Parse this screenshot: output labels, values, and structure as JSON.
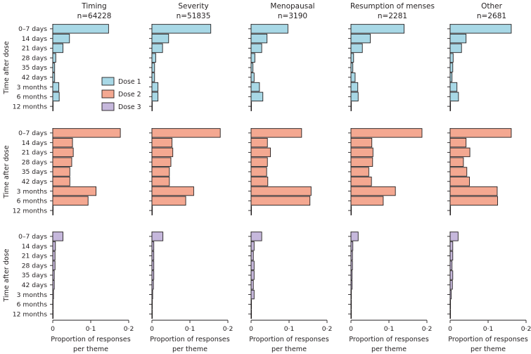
{
  "chart_data": {
    "type": "bar",
    "orientation": "horizontal",
    "y_axis_title": "Time after dose",
    "x_axis_title": [
      "Proportion of responses",
      "per theme"
    ],
    "xlim": [
      0,
      0.2
    ],
    "x_ticks": [
      0,
      0.1,
      0.2
    ],
    "x_tick_labels": [
      "0",
      "0·1",
      "0·2"
    ],
    "categories": [
      "0–7 days",
      "14 days",
      "21 days",
      "28 days",
      "35 days",
      "42 days",
      "3 months",
      "6 months",
      "12 months"
    ],
    "legend": [
      {
        "name": "Dose 1",
        "color": "#a8d8e6"
      },
      {
        "name": "Dose 2",
        "color": "#f4a891"
      },
      {
        "name": "Dose 3",
        "color": "#c6b8dc"
      }
    ],
    "themes": [
      {
        "title": "Timing",
        "n": "n=64228",
        "series": [
          {
            "name": "Dose 1",
            "values": [
              0.147,
              0.044,
              0.027,
              0.008,
              0.005,
              0.005,
              0.016,
              0.017,
              0.001
            ]
          },
          {
            "name": "Dose 2",
            "values": [
              0.178,
              0.052,
              0.054,
              0.05,
              0.045,
              0.045,
              0.114,
              0.093,
              0.001
            ]
          },
          {
            "name": "Dose 3",
            "values": [
              0.027,
              0.007,
              0.006,
              0.006,
              0.004,
              0.004,
              0.002,
              0.001,
              0.001
            ]
          }
        ]
      },
      {
        "title": "Severity",
        "n": "n=51835",
        "series": [
          {
            "name": "Dose 1",
            "values": [
              0.155,
              0.044,
              0.028,
              0.01,
              0.007,
              0.007,
              0.016,
              0.016,
              0.001
            ]
          },
          {
            "name": "Dose 2",
            "values": [
              0.18,
              0.053,
              0.055,
              0.05,
              0.046,
              0.046,
              0.11,
              0.089,
              0.001
            ]
          },
          {
            "name": "Dose 3",
            "values": [
              0.029,
              0.005,
              0.005,
              0.005,
              0.005,
              0.004,
              0.002,
              0.001,
              0.001
            ]
          }
        ]
      },
      {
        "title": "Menopausal",
        "n": "n=3190",
        "series": [
          {
            "name": "Dose 1",
            "values": [
              0.097,
              0.042,
              0.028,
              0.01,
              0.005,
              0.008,
              0.022,
              0.031,
              0.001
            ]
          },
          {
            "name": "Dose 2",
            "values": [
              0.133,
              0.043,
              0.051,
              0.043,
              0.041,
              0.044,
              0.158,
              0.155,
              0.001
            ]
          },
          {
            "name": "Dose 3",
            "values": [
              0.028,
              0.008,
              0.006,
              0.008,
              0.008,
              0.006,
              0.008,
              0.001,
              0.001
            ]
          }
        ]
      },
      {
        "title": "Resumption of menses",
        "n": "n=2281",
        "series": [
          {
            "name": "Dose 1",
            "values": [
              0.14,
              0.051,
              0.03,
              0.007,
              0.005,
              0.011,
              0.018,
              0.019,
              0.001
            ]
          },
          {
            "name": "Dose 2",
            "values": [
              0.187,
              0.055,
              0.058,
              0.057,
              0.047,
              0.054,
              0.117,
              0.085,
              0.001
            ]
          },
          {
            "name": "Dose 3",
            "values": [
              0.019,
              0.005,
              0.004,
              0.004,
              0.003,
              0.003,
              0.001,
              0.001,
              0.001
            ]
          }
        ]
      },
      {
        "title": "Other",
        "n": "n=2681",
        "series": [
          {
            "name": "Dose 1",
            "values": [
              0.161,
              0.042,
              0.03,
              0.008,
              0.007,
              0.005,
              0.018,
              0.022,
              0.001
            ]
          },
          {
            "name": "Dose 2",
            "values": [
              0.161,
              0.042,
              0.052,
              0.035,
              0.044,
              0.051,
              0.124,
              0.125,
              0.001
            ]
          },
          {
            "name": "Dose 3",
            "values": [
              0.021,
              0.007,
              0.007,
              0.005,
              0.007,
              0.006,
              0.003,
              0.001,
              0.001
            ]
          }
        ]
      }
    ]
  }
}
